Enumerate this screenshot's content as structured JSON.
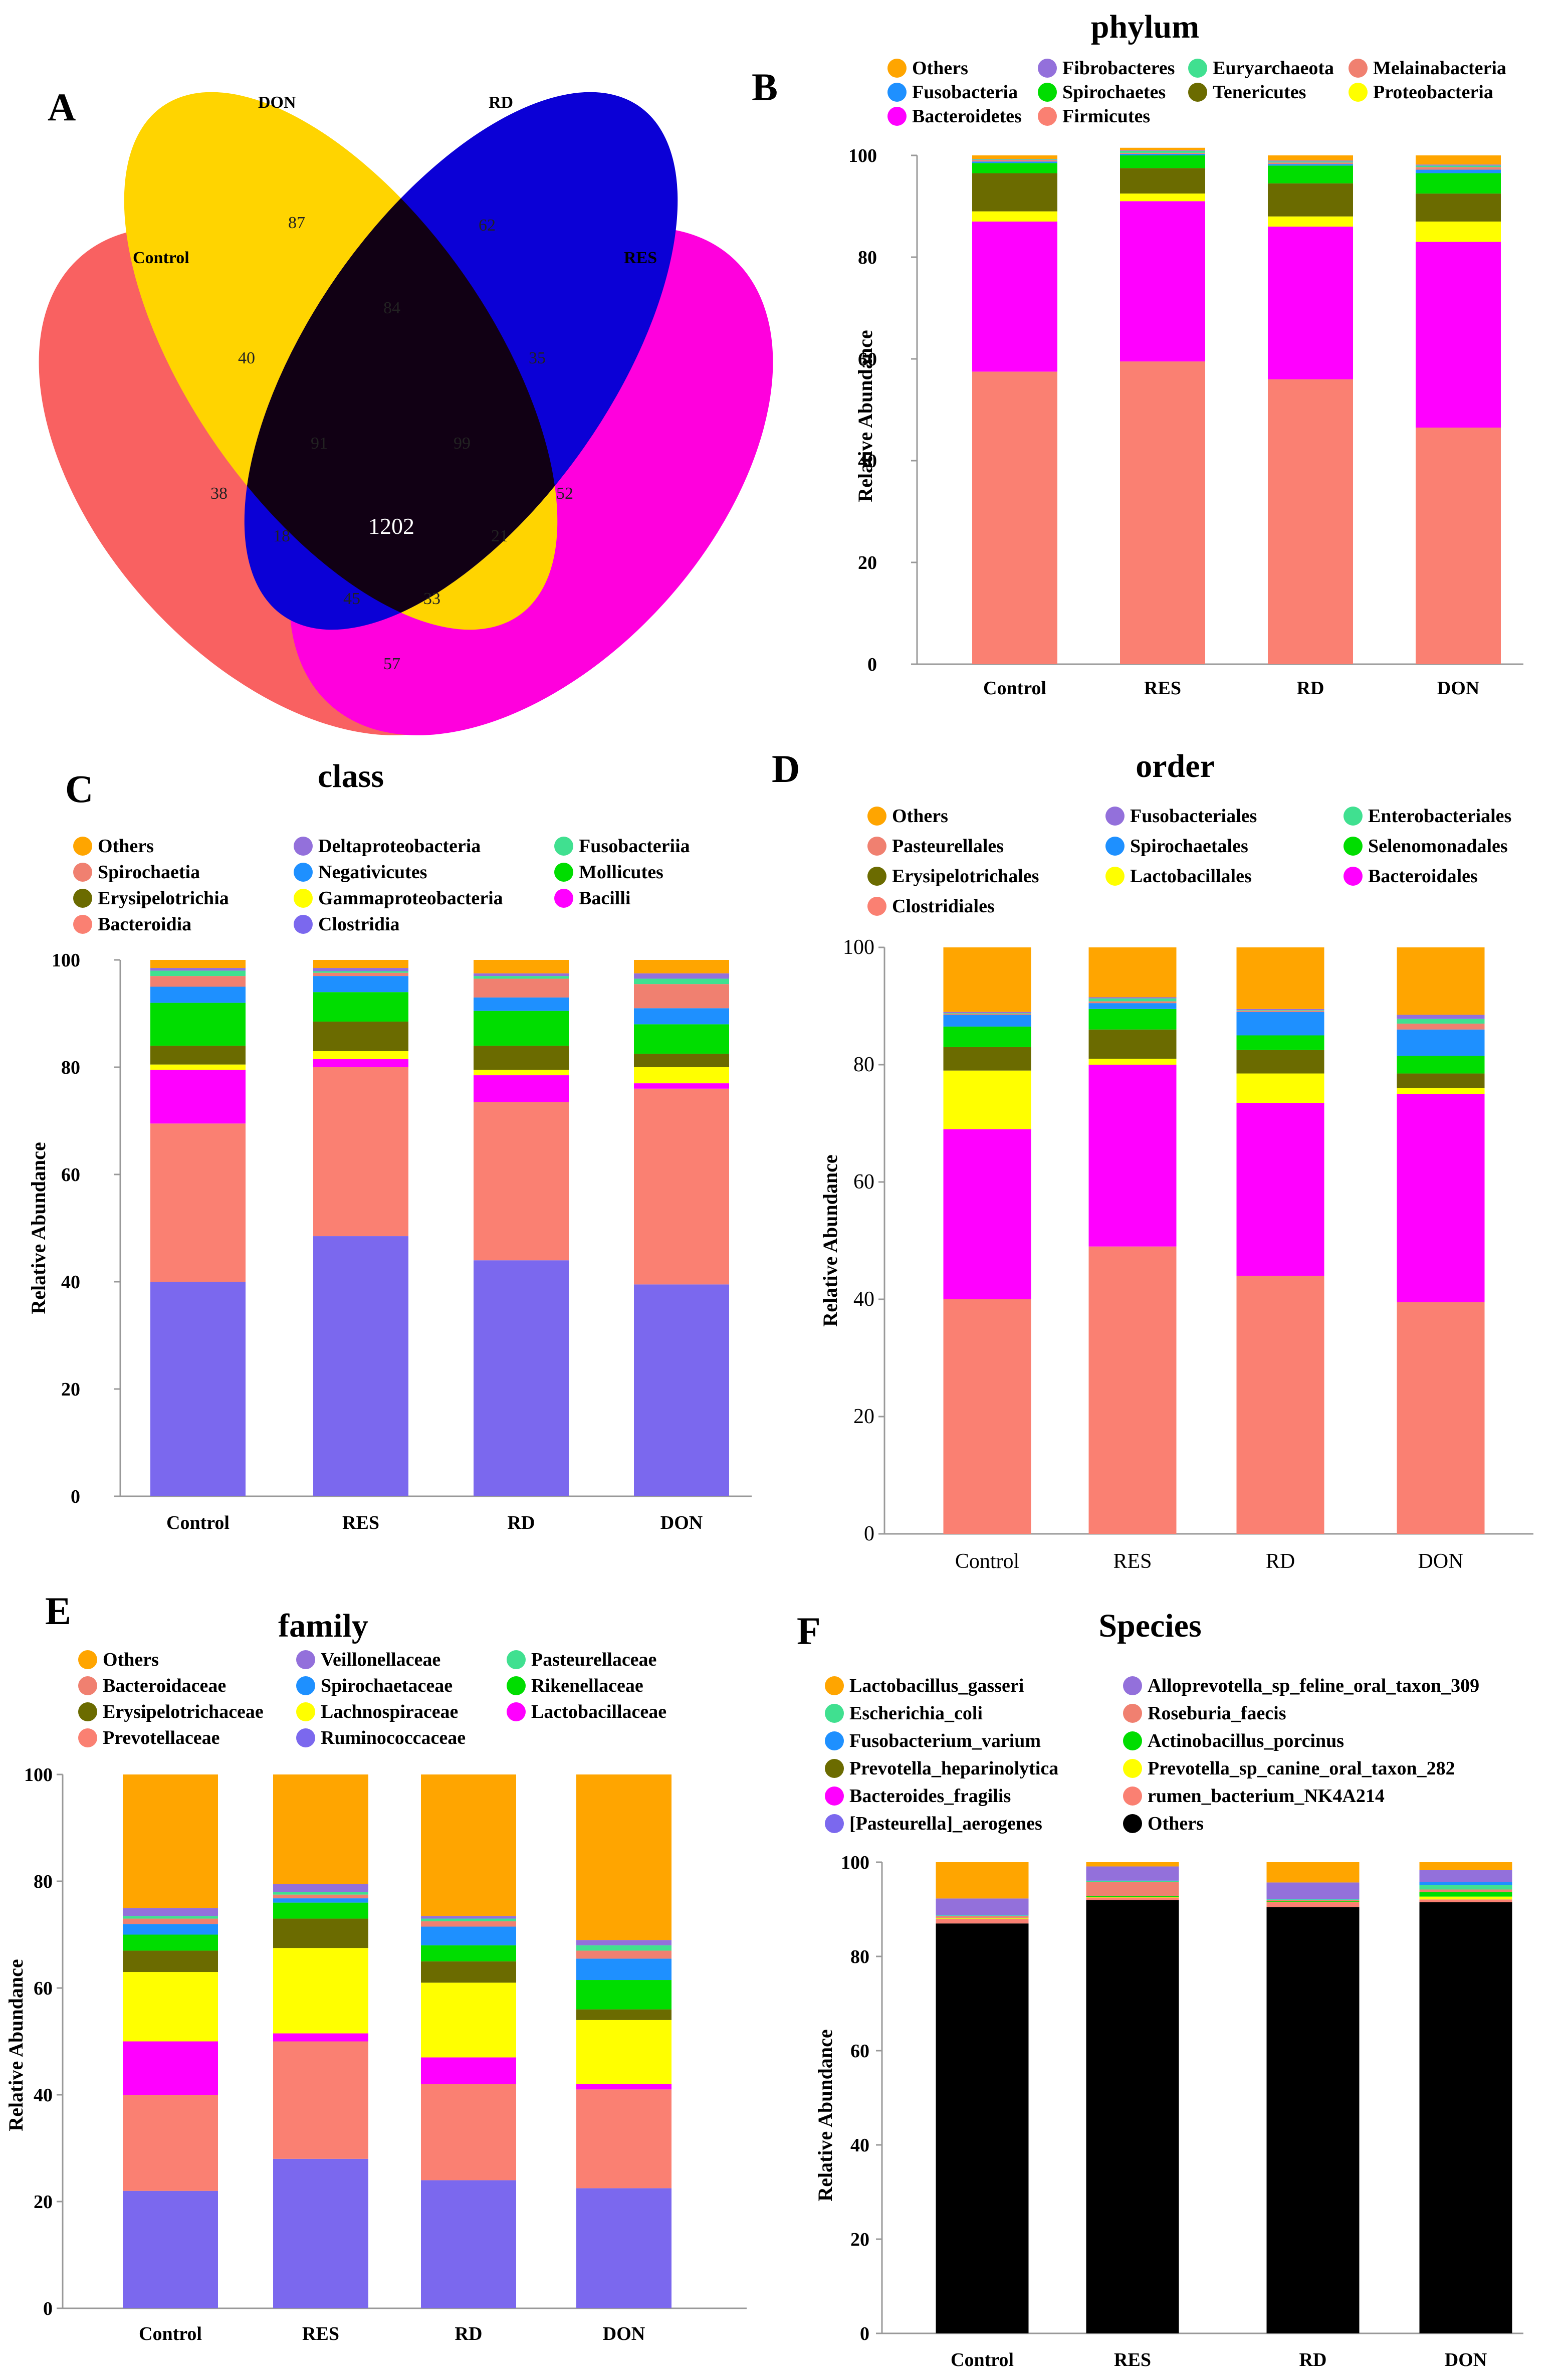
{
  "venn": {
    "label": "A",
    "sets": [
      {
        "name": "Control",
        "color": "#f96161"
      },
      {
        "name": "DON",
        "color": "#ffd400"
      },
      {
        "name": "RD",
        "color": "#0b00d6"
      },
      {
        "name": "RES",
        "color": "#ff00dd"
      }
    ],
    "regions": {
      "DON": "87",
      "RD": "62",
      "DON_RD": "84",
      "Control_DON": "40",
      "RD_RES": "35",
      "Control_DON_RD": "91",
      "DON_RD_RES": "99",
      "Control": "38",
      "RES": "52",
      "Control_RD": "18",
      "All": "1202",
      "Control_DON_RES": "21",
      "Control_RD_RES": "45",
      "Control_DON_RD_RES_2": "33",
      "Control_RES": "57"
    }
  },
  "chart_data": [
    {
      "label": "B",
      "title": "phylum",
      "type": "bar",
      "stacked": true,
      "categories": [
        "Control",
        "RES",
        "RD",
        "DON"
      ],
      "ylabel": "Relative Abundance",
      "ylim": [
        0,
        100
      ],
      "yticks": [
        0,
        20,
        40,
        60,
        80,
        100
      ],
      "legend": [
        {
          "name": "Others",
          "color": "#ffa500"
        },
        {
          "name": "Fibrobacteres",
          "color": "#9370db"
        },
        {
          "name": "Euryarchaeota",
          "color": "#40e090"
        },
        {
          "name": "Melainabacteria",
          "color": "#f08070"
        },
        {
          "name": "Fusobacteria",
          "color": "#1e90ff"
        },
        {
          "name": "Spirochaetes",
          "color": "#00dd00"
        },
        {
          "name": "Tenericutes",
          "color": "#6b6b00"
        },
        {
          "name": "Proteobacteria",
          "color": "#ffff00"
        },
        {
          "name": "Bacteroidetes",
          "color": "#ff00ff"
        },
        {
          "name": "Firmicutes",
          "color": "#fa8072"
        }
      ],
      "series": [
        {
          "name": "Firmicutes",
          "color": "#fa8072",
          "values": [
            57.5,
            59.5,
            56,
            46.5
          ]
        },
        {
          "name": "Bacteroidetes",
          "color": "#ff00ff",
          "values": [
            29.5,
            31.5,
            30,
            36.5
          ]
        },
        {
          "name": "Proteobacteria",
          "color": "#ffff00",
          "values": [
            2,
            1.5,
            2,
            4
          ]
        },
        {
          "name": "Tenericutes",
          "color": "#6b6b00",
          "values": [
            7.5,
            5,
            6.5,
            5.5
          ]
        },
        {
          "name": "Spirochaetes",
          "color": "#00dd00",
          "values": [
            2,
            2.5,
            3.5,
            4
          ]
        },
        {
          "name": "Fusobacteria",
          "color": "#1e90ff",
          "values": [
            0.3,
            0.3,
            0.3,
            0.7
          ]
        },
        {
          "name": "Melainabacteria",
          "color": "#f08070",
          "values": [
            0.3,
            0.2,
            0.3,
            0.5
          ]
        },
        {
          "name": "Euryarchaeota",
          "color": "#40e090",
          "values": [
            0.1,
            0.4,
            0.2,
            0.3
          ]
        },
        {
          "name": "Fibrobacteres",
          "color": "#9370db",
          "values": [
            0.1,
            0.1,
            0.2,
            0.2
          ]
        },
        {
          "name": "Others",
          "color": "#ffa500",
          "values": [
            0.7,
            0.5,
            1,
            1.8
          ]
        }
      ]
    },
    {
      "label": "C",
      "title": "class",
      "type": "bar",
      "stacked": true,
      "categories": [
        "Control",
        "RES",
        "RD",
        "DON"
      ],
      "ylabel": "Relative Abundance",
      "ylim": [
        0,
        100
      ],
      "yticks": [
        0,
        20,
        40,
        60,
        80,
        100
      ],
      "legend": [
        {
          "name": "Others",
          "color": "#ffa500"
        },
        {
          "name": "Deltaproteobacteria",
          "color": "#9370db"
        },
        {
          "name": "Fusobacteriia",
          "color": "#40e090"
        },
        {
          "name": "Spirochaetia",
          "color": "#f08070"
        },
        {
          "name": "Negativicutes",
          "color": "#1e90ff"
        },
        {
          "name": "Mollicutes",
          "color": "#00dd00"
        },
        {
          "name": "Erysipelotrichia",
          "color": "#6b6b00"
        },
        {
          "name": "Gammaproteobacteria",
          "color": "#ffff00"
        },
        {
          "name": "Bacilli",
          "color": "#ff00ff"
        },
        {
          "name": "Bacteroidia",
          "color": "#fa8072"
        },
        {
          "name": "Clostridia",
          "color": "#7b68ee"
        }
      ],
      "series": [
        {
          "name": "Clostridia",
          "color": "#7b68ee",
          "values": [
            40,
            48.5,
            44,
            39.5
          ]
        },
        {
          "name": "Bacteroidia",
          "color": "#fa8072",
          "values": [
            29.5,
            31.5,
            29.5,
            36.5
          ]
        },
        {
          "name": "Bacilli",
          "color": "#ff00ff",
          "values": [
            10,
            1.5,
            5,
            1
          ]
        },
        {
          "name": "Gammaproteobacteria",
          "color": "#ffff00",
          "values": [
            1,
            1.5,
            1,
            3
          ]
        },
        {
          "name": "Erysipelotrichia",
          "color": "#6b6b00",
          "values": [
            3.5,
            5.5,
            4.5,
            2.5
          ]
        },
        {
          "name": "Mollicutes",
          "color": "#00dd00",
          "values": [
            8,
            5.5,
            6.5,
            5.5
          ]
        },
        {
          "name": "Negativicutes",
          "color": "#1e90ff",
          "values": [
            3,
            3,
            2.5,
            3
          ]
        },
        {
          "name": "Spirochaetia",
          "color": "#f08070",
          "values": [
            2,
            0.6,
            3.5,
            4.5
          ]
        },
        {
          "name": "Fusobacteriia",
          "color": "#40e090",
          "values": [
            1,
            0.3,
            0.5,
            1
          ]
        },
        {
          "name": "Deltaproteobacteria",
          "color": "#9370db",
          "values": [
            0.5,
            0.6,
            0.5,
            1
          ]
        },
        {
          "name": "Others",
          "color": "#ffa500",
          "values": [
            1.5,
            1.5,
            2.5,
            2.5
          ]
        }
      ]
    },
    {
      "label": "D",
      "title": "order",
      "type": "bar",
      "stacked": true,
      "categories": [
        "Control",
        "RES",
        "RD",
        "DON"
      ],
      "ylabel": "Relative Abundance",
      "ylim": [
        0,
        100
      ],
      "yticks": [
        0,
        20,
        40,
        60,
        80,
        100
      ],
      "legend": [
        {
          "name": "Others",
          "color": "#ffa500"
        },
        {
          "name": "Fusobacteriales",
          "color": "#9370db"
        },
        {
          "name": "Enterobacteriales",
          "color": "#40e090"
        },
        {
          "name": "Pasteurellales",
          "color": "#f08070"
        },
        {
          "name": "Spirochaetales",
          "color": "#1e90ff"
        },
        {
          "name": "Selenomonadales",
          "color": "#00dd00"
        },
        {
          "name": "Erysipelotrichales",
          "color": "#6b6b00"
        },
        {
          "name": "Lactobacillales",
          "color": "#ffff00"
        },
        {
          "name": "Bacteroidales",
          "color": "#ff00ff"
        },
        {
          "name": "Clostridiales",
          "color": "#fa8072"
        }
      ],
      "series": [
        {
          "name": "Clostridiales",
          "color": "#fa8072",
          "values": [
            40,
            49,
            44,
            39.5
          ]
        },
        {
          "name": "Bacteroidales",
          "color": "#ff00ff",
          "values": [
            29,
            31,
            29.5,
            35.5
          ]
        },
        {
          "name": "Lactobacillales",
          "color": "#ffff00",
          "values": [
            10,
            1,
            5,
            1
          ]
        },
        {
          "name": "Erysipelotrichales",
          "color": "#6b6b00",
          "values": [
            4,
            5,
            4,
            2.5
          ]
        },
        {
          "name": "Selenomonadales",
          "color": "#00dd00",
          "values": [
            3.5,
            3.5,
            2.5,
            3
          ]
        },
        {
          "name": "Spirochaetales",
          "color": "#1e90ff",
          "values": [
            2,
            1,
            4,
            4.5
          ]
        },
        {
          "name": "Pasteurellales",
          "color": "#f08070",
          "values": [
            0.2,
            0.3,
            0.2,
            1
          ]
        },
        {
          "name": "Enterobacteriales",
          "color": "#40e090",
          "values": [
            0.1,
            0.5,
            0.1,
            0.8
          ]
        },
        {
          "name": "Fusobacteriales",
          "color": "#9370db",
          "values": [
            0.2,
            0.2,
            0.2,
            0.7
          ]
        },
        {
          "name": "Others",
          "color": "#ffa500",
          "values": [
            11,
            8.5,
            10.5,
            11.5
          ]
        }
      ]
    },
    {
      "label": "E",
      "title": "family",
      "type": "bar",
      "stacked": true,
      "categories": [
        "Control",
        "RES",
        "RD",
        "DON"
      ],
      "ylabel": "Relative Abundance",
      "ylim": [
        0,
        100
      ],
      "yticks": [
        0,
        20,
        40,
        60,
        80,
        100
      ],
      "legend": [
        {
          "name": "Others",
          "color": "#ffa500"
        },
        {
          "name": "Veillonellaceae",
          "color": "#9370db"
        },
        {
          "name": "Pasteurellaceae",
          "color": "#40e090"
        },
        {
          "name": "Bacteroidaceae",
          "color": "#f08070"
        },
        {
          "name": "Spirochaetaceae",
          "color": "#1e90ff"
        },
        {
          "name": "Rikenellaceae",
          "color": "#00dd00"
        },
        {
          "name": "Erysipelotrichaceae",
          "color": "#6b6b00"
        },
        {
          "name": "Lachnospiraceae",
          "color": "#ffff00"
        },
        {
          "name": "Lactobacillaceae",
          "color": "#ff00ff"
        },
        {
          "name": "Prevotellaceae",
          "color": "#fa8072"
        },
        {
          "name": "Ruminococcaceae",
          "color": "#7b68ee"
        }
      ],
      "series": [
        {
          "name": "Ruminococcaceae",
          "color": "#7b68ee",
          "values": [
            22,
            28,
            24,
            22.5
          ]
        },
        {
          "name": "Prevotellaceae",
          "color": "#fa8072",
          "values": [
            18,
            22,
            18,
            18.5
          ]
        },
        {
          "name": "Lactobacillaceae",
          "color": "#ff00ff",
          "values": [
            10,
            1.5,
            5,
            1
          ]
        },
        {
          "name": "Lachnospiraceae",
          "color": "#ffff00",
          "values": [
            13,
            16,
            14,
            12
          ]
        },
        {
          "name": "Erysipelotrichaceae",
          "color": "#6b6b00",
          "values": [
            4,
            5.5,
            4,
            2
          ]
        },
        {
          "name": "Rikenellaceae",
          "color": "#00dd00",
          "values": [
            3,
            3,
            3,
            5.5
          ]
        },
        {
          "name": "Spirochaetaceae",
          "color": "#1e90ff",
          "values": [
            2,
            0.8,
            3.5,
            4
          ]
        },
        {
          "name": "Bacteroidaceae",
          "color": "#f08070",
          "values": [
            1,
            0.7,
            1,
            1.5
          ]
        },
        {
          "name": "Pasteurellaceae",
          "color": "#40e090",
          "values": [
            0.5,
            0.5,
            0.5,
            1
          ]
        },
        {
          "name": "Veillonellaceae",
          "color": "#9370db",
          "values": [
            1.5,
            1.5,
            0.5,
            1
          ]
        },
        {
          "name": "Others",
          "color": "#ffa500",
          "values": [
            25,
            20.5,
            26.5,
            31
          ]
        }
      ]
    },
    {
      "label": "F",
      "title": "Species",
      "type": "bar",
      "stacked": true,
      "categories": [
        "Control",
        "RES",
        "RD",
        "DON"
      ],
      "ylabel": "Relative Abundance",
      "ylim": [
        0,
        100
      ],
      "yticks": [
        0,
        20,
        40,
        60,
        80,
        100
      ],
      "legend": [
        {
          "name": "Lactobacillus_gasseri",
          "color": "#ffa500"
        },
        {
          "name": "Alloprevotella_sp_feline_oral_taxon_309",
          "color": "#9370db"
        },
        {
          "name": "Escherichia_coli",
          "color": "#40e090"
        },
        {
          "name": "Roseburia_faecis",
          "color": "#f08070"
        },
        {
          "name": "Fusobacterium_varium",
          "color": "#1e90ff"
        },
        {
          "name": "Actinobacillus_porcinus",
          "color": "#00dd00"
        },
        {
          "name": "Prevotella_heparinolytica",
          "color": "#6b6b00"
        },
        {
          "name": "Prevotella_sp_canine_oral_taxon_282",
          "color": "#ffff00"
        },
        {
          "name": "Bacteroides_fragilis",
          "color": "#ff00ff"
        },
        {
          "name": "rumen_bacterium_NK4A214",
          "color": "#fa8072"
        },
        {
          "name": "[Pasteurella]_aerogenes",
          "color": "#7b68ee"
        },
        {
          "name": "Others",
          "color": "#000000"
        }
      ],
      "series": [
        {
          "name": "Others",
          "color": "#000000",
          "values": [
            87,
            92,
            90.5,
            91.5
          ]
        },
        {
          "name": "rumen_bacterium_NK4A214",
          "color": "#fa8072",
          "values": [
            1,
            0.5,
            1,
            0.6
          ]
        },
        {
          "name": "Prevotella_sp_canine_oral_taxon_282",
          "color": "#ffff00",
          "values": [
            0.1,
            0.1,
            0.1,
            0.6
          ]
        },
        {
          "name": "Actinobacillus_porcinus",
          "color": "#00dd00",
          "values": [
            0.1,
            0.2,
            0.1,
            1
          ]
        },
        {
          "name": "Roseburia_faecis",
          "color": "#f08070",
          "values": [
            0.4,
            3,
            0.3,
            0.5
          ]
        },
        {
          "name": "Escherichia_coli",
          "color": "#40e090",
          "values": [
            0.1,
            0.2,
            0.1,
            1
          ]
        },
        {
          "name": "Fusobacterium_varium",
          "color": "#1e90ff",
          "values": [
            0.1,
            0.1,
            0.1,
            0.6
          ]
        },
        {
          "name": "Alloprevotella_sp_feline_oral_taxon_309",
          "color": "#9370db",
          "values": [
            3.5,
            3,
            3.5,
            2.5
          ]
        },
        {
          "name": "Lactobacillus_gasseri",
          "color": "#ffa500",
          "values": [
            7.7,
            0.9,
            4.3,
            1.7
          ]
        }
      ]
    }
  ]
}
